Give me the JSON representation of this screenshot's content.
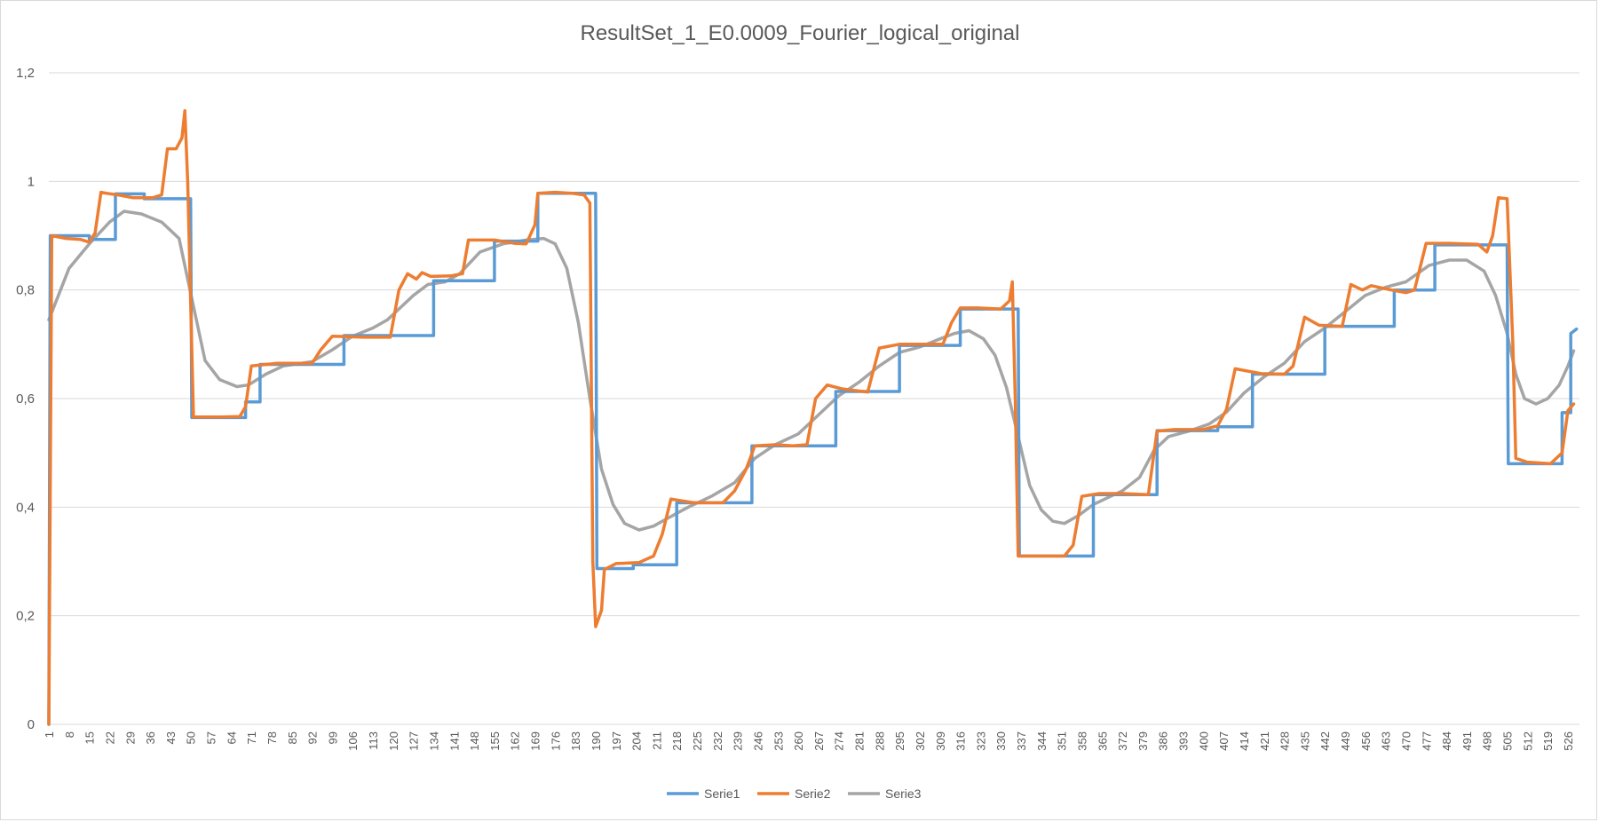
{
  "chart_data": {
    "type": "line",
    "title": "ResultSet_1_E0.0009_Fourier_logical_original",
    "xlabel": "",
    "ylabel": "",
    "ylim": [
      0,
      1.2
    ],
    "xlim": [
      1,
      530
    ],
    "yticks": [
      0,
      0.2,
      0.4,
      0.6,
      0.8,
      1,
      1.2
    ],
    "ytick_labels": [
      "0",
      "0,2",
      "0,4",
      "0,6",
      "0,8",
      "1",
      "1,2"
    ],
    "xtick_labels": [
      "1",
      "8",
      "15",
      "22",
      "29",
      "36",
      "43",
      "50",
      "57",
      "64",
      "71",
      "78",
      "85",
      "92",
      "99",
      "106",
      "113",
      "120",
      "127",
      "134",
      "141",
      "148",
      "155",
      "162",
      "169",
      "176",
      "183",
      "190",
      "197",
      "204",
      "211",
      "218",
      "225",
      "232",
      "239",
      "246",
      "253",
      "260",
      "267",
      "274",
      "281",
      "288",
      "295",
      "302",
      "309",
      "316",
      "323",
      "330",
      "337",
      "344",
      "351",
      "358",
      "365",
      "372",
      "379",
      "386",
      "393",
      "400",
      "407",
      "414",
      "421",
      "428",
      "435",
      "442",
      "449",
      "456",
      "463",
      "470",
      "477",
      "484",
      "491",
      "498",
      "505",
      "512",
      "519",
      "526"
    ],
    "grid": "horizontal",
    "legend_position": "bottom",
    "series": [
      {
        "name": "Serie1",
        "color": "#5b9bd5",
        "points": [
          [
            1,
            0.0
          ],
          [
            1.5,
            0.9
          ],
          [
            15,
            0.9
          ],
          [
            15,
            0.893
          ],
          [
            24,
            0.893
          ],
          [
            24,
            0.977
          ],
          [
            34,
            0.977
          ],
          [
            34,
            0.968
          ],
          [
            50,
            0.968
          ],
          [
            50.4,
            0.565
          ],
          [
            69,
            0.565
          ],
          [
            69,
            0.594
          ],
          [
            74,
            0.594
          ],
          [
            74,
            0.663
          ],
          [
            103,
            0.663
          ],
          [
            103,
            0.716
          ],
          [
            134,
            0.716
          ],
          [
            134,
            0.817
          ],
          [
            155,
            0.817
          ],
          [
            155,
            0.89
          ],
          [
            170,
            0.89
          ],
          [
            170,
            0.978
          ],
          [
            190,
            0.978
          ],
          [
            190.4,
            0.287
          ],
          [
            203,
            0.287
          ],
          [
            203,
            0.294
          ],
          [
            218,
            0.294
          ],
          [
            218,
            0.408
          ],
          [
            244,
            0.408
          ],
          [
            244,
            0.513
          ],
          [
            273,
            0.513
          ],
          [
            273,
            0.613
          ],
          [
            295,
            0.613
          ],
          [
            295,
            0.698
          ],
          [
            316,
            0.698
          ],
          [
            316,
            0.765
          ],
          [
            336,
            0.765
          ],
          [
            336.4,
            0.31
          ],
          [
            362,
            0.31
          ],
          [
            362,
            0.423
          ],
          [
            384,
            0.423
          ],
          [
            384,
            0.541
          ],
          [
            405,
            0.541
          ],
          [
            405,
            0.548
          ],
          [
            417,
            0.548
          ],
          [
            417,
            0.645
          ],
          [
            442,
            0.645
          ],
          [
            442,
            0.733
          ],
          [
            466,
            0.733
          ],
          [
            466,
            0.8
          ],
          [
            480,
            0.8
          ],
          [
            480,
            0.883
          ],
          [
            505,
            0.883
          ],
          [
            505.4,
            0.48
          ],
          [
            524,
            0.48
          ],
          [
            524,
            0.574
          ],
          [
            527,
            0.574
          ],
          [
            527,
            0.72
          ],
          [
            529,
            0.728
          ]
        ]
      },
      {
        "name": "Serie2",
        "color": "#ed7d31",
        "points": [
          [
            1,
            0.0
          ],
          [
            2,
            0.9
          ],
          [
            7,
            0.895
          ],
          [
            12,
            0.893
          ],
          [
            15,
            0.888
          ],
          [
            17,
            0.905
          ],
          [
            19,
            0.98
          ],
          [
            21,
            0.978
          ],
          [
            25,
            0.975
          ],
          [
            30,
            0.97
          ],
          [
            37,
            0.97
          ],
          [
            40,
            0.975
          ],
          [
            42,
            1.06
          ],
          [
            45,
            1.06
          ],
          [
            47,
            1.08
          ],
          [
            48,
            1.13
          ],
          [
            49,
            1.0
          ],
          [
            50,
            0.78
          ],
          [
            51,
            0.566
          ],
          [
            60,
            0.566
          ],
          [
            67,
            0.567
          ],
          [
            69,
            0.585
          ],
          [
            71,
            0.66
          ],
          [
            80,
            0.665
          ],
          [
            92,
            0.665
          ],
          [
            95,
            0.69
          ],
          [
            99,
            0.715
          ],
          [
            110,
            0.713
          ],
          [
            119,
            0.713
          ],
          [
            122,
            0.8
          ],
          [
            125,
            0.83
          ],
          [
            128,
            0.82
          ],
          [
            130,
            0.832
          ],
          [
            133,
            0.825
          ],
          [
            140,
            0.826
          ],
          [
            144,
            0.83
          ],
          [
            146,
            0.892
          ],
          [
            155,
            0.892
          ],
          [
            162,
            0.886
          ],
          [
            166,
            0.885
          ],
          [
            169,
            0.92
          ],
          [
            170,
            0.978
          ],
          [
            176,
            0.98
          ],
          [
            182,
            0.978
          ],
          [
            186,
            0.975
          ],
          [
            188,
            0.96
          ],
          [
            189,
            0.3
          ],
          [
            190,
            0.18
          ],
          [
            192,
            0.21
          ],
          [
            193,
            0.285
          ],
          [
            197,
            0.296
          ],
          [
            205,
            0.298
          ],
          [
            210,
            0.31
          ],
          [
            213,
            0.35
          ],
          [
            216,
            0.415
          ],
          [
            224,
            0.408
          ],
          [
            234,
            0.408
          ],
          [
            238,
            0.43
          ],
          [
            242,
            0.47
          ],
          [
            245,
            0.513
          ],
          [
            252,
            0.515
          ],
          [
            258,
            0.513
          ],
          [
            263,
            0.515
          ],
          [
            266,
            0.6
          ],
          [
            270,
            0.625
          ],
          [
            275,
            0.618
          ],
          [
            284,
            0.612
          ],
          [
            288,
            0.693
          ],
          [
            295,
            0.7
          ],
          [
            305,
            0.7
          ],
          [
            310,
            0.7
          ],
          [
            313,
            0.74
          ],
          [
            316,
            0.767
          ],
          [
            322,
            0.767
          ],
          [
            330,
            0.765
          ],
          [
            333,
            0.78
          ],
          [
            334,
            0.815
          ],
          [
            335,
            0.6
          ],
          [
            336,
            0.31
          ],
          [
            342,
            0.31
          ],
          [
            352,
            0.31
          ],
          [
            355,
            0.33
          ],
          [
            358,
            0.42
          ],
          [
            364,
            0.425
          ],
          [
            372,
            0.425
          ],
          [
            381,
            0.423
          ],
          [
            384,
            0.54
          ],
          [
            390,
            0.543
          ],
          [
            400,
            0.543
          ],
          [
            405,
            0.55
          ],
          [
            408,
            0.58
          ],
          [
            411,
            0.655
          ],
          [
            420,
            0.646
          ],
          [
            428,
            0.645
          ],
          [
            431,
            0.66
          ],
          [
            435,
            0.75
          ],
          [
            440,
            0.735
          ],
          [
            448,
            0.733
          ],
          [
            451,
            0.81
          ],
          [
            455,
            0.8
          ],
          [
            458,
            0.808
          ],
          [
            465,
            0.8
          ],
          [
            470,
            0.795
          ],
          [
            473,
            0.8
          ],
          [
            477,
            0.886
          ],
          [
            485,
            0.886
          ],
          [
            495,
            0.884
          ],
          [
            498,
            0.87
          ],
          [
            500,
            0.9
          ],
          [
            502,
            0.97
          ],
          [
            505,
            0.968
          ],
          [
            507,
            0.7
          ],
          [
            508,
            0.49
          ],
          [
            512,
            0.483
          ],
          [
            520,
            0.48
          ],
          [
            524,
            0.5
          ],
          [
            526,
            0.578
          ],
          [
            528,
            0.59
          ]
        ]
      },
      {
        "name": "Serie3",
        "color": "#a5a5a5",
        "points": [
          [
            1,
            0.745
          ],
          [
            8,
            0.84
          ],
          [
            15,
            0.885
          ],
          [
            22,
            0.925
          ],
          [
            27,
            0.945
          ],
          [
            33,
            0.94
          ],
          [
            40,
            0.925
          ],
          [
            46,
            0.895
          ],
          [
            51,
            0.77
          ],
          [
            55,
            0.67
          ],
          [
            60,
            0.635
          ],
          [
            66,
            0.622
          ],
          [
            70,
            0.625
          ],
          [
            76,
            0.645
          ],
          [
            82,
            0.66
          ],
          [
            92,
            0.668
          ],
          [
            99,
            0.69
          ],
          [
            106,
            0.715
          ],
          [
            113,
            0.73
          ],
          [
            118,
            0.745
          ],
          [
            122,
            0.765
          ],
          [
            127,
            0.79
          ],
          [
            132,
            0.81
          ],
          [
            138,
            0.815
          ],
          [
            143,
            0.83
          ],
          [
            150,
            0.87
          ],
          [
            158,
            0.885
          ],
          [
            166,
            0.892
          ],
          [
            172,
            0.895
          ],
          [
            176,
            0.885
          ],
          [
            180,
            0.84
          ],
          [
            184,
            0.74
          ],
          [
            188,
            0.6
          ],
          [
            192,
            0.47
          ],
          [
            196,
            0.405
          ],
          [
            200,
            0.37
          ],
          [
            205,
            0.358
          ],
          [
            210,
            0.365
          ],
          [
            215,
            0.38
          ],
          [
            222,
            0.4
          ],
          [
            230,
            0.42
          ],
          [
            238,
            0.445
          ],
          [
            245,
            0.49
          ],
          [
            252,
            0.515
          ],
          [
            260,
            0.535
          ],
          [
            267,
            0.57
          ],
          [
            274,
            0.605
          ],
          [
            281,
            0.63
          ],
          [
            288,
            0.66
          ],
          [
            295,
            0.685
          ],
          [
            302,
            0.695
          ],
          [
            309,
            0.71
          ],
          [
            314,
            0.72
          ],
          [
            319,
            0.725
          ],
          [
            324,
            0.71
          ],
          [
            328,
            0.68
          ],
          [
            332,
            0.62
          ],
          [
            336,
            0.53
          ],
          [
            340,
            0.44
          ],
          [
            344,
            0.395
          ],
          [
            348,
            0.374
          ],
          [
            352,
            0.37
          ],
          [
            357,
            0.385
          ],
          [
            362,
            0.405
          ],
          [
            368,
            0.42
          ],
          [
            372,
            0.43
          ],
          [
            378,
            0.455
          ],
          [
            383,
            0.505
          ],
          [
            388,
            0.53
          ],
          [
            395,
            0.54
          ],
          [
            402,
            0.553
          ],
          [
            408,
            0.575
          ],
          [
            414,
            0.61
          ],
          [
            421,
            0.64
          ],
          [
            428,
            0.665
          ],
          [
            435,
            0.705
          ],
          [
            442,
            0.73
          ],
          [
            449,
            0.76
          ],
          [
            456,
            0.79
          ],
          [
            463,
            0.805
          ],
          [
            470,
            0.815
          ],
          [
            478,
            0.845
          ],
          [
            485,
            0.855
          ],
          [
            491,
            0.855
          ],
          [
            497,
            0.835
          ],
          [
            501,
            0.79
          ],
          [
            505,
            0.72
          ],
          [
            508,
            0.645
          ],
          [
            511,
            0.6
          ],
          [
            515,
            0.59
          ],
          [
            519,
            0.6
          ],
          [
            523,
            0.625
          ],
          [
            526,
            0.66
          ],
          [
            528,
            0.688
          ]
        ]
      }
    ]
  }
}
